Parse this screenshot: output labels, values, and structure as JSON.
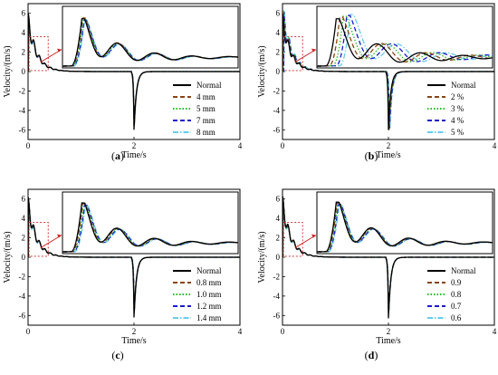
{
  "chart_data": [
    {
      "type": "line",
      "panel_label": "a",
      "xlabel": "Time/s",
      "ylabel": "Velocity/(m/s)",
      "xlim": [
        0,
        4
      ],
      "ylim": [
        -7,
        7
      ],
      "xticks": [
        "0",
        "2",
        "4"
      ],
      "yticks": [
        "-6",
        "-4",
        "-2",
        "0",
        "2",
        "4",
        "6"
      ],
      "legend": "right",
      "inset": true,
      "series": [
        {
          "name": "Normal",
          "color": "#000000",
          "dash": "solid",
          "peak": 6.0,
          "lag": 0.0
        },
        {
          "name": "4 mm",
          "color": "#8B4513",
          "dash": "dashed",
          "peak": 6.1,
          "lag": 0.004
        },
        {
          "name": "5 mm",
          "color": "#22bb22",
          "dash": "dotted",
          "peak": 5.9,
          "lag": 0.008
        },
        {
          "name": "7 mm",
          "color": "#1a1acc",
          "dash": "dashed",
          "peak": 5.8,
          "lag": 0.012
        },
        {
          "name": "8 mm",
          "color": "#66ccee",
          "dash": "dashdot",
          "peak": 5.7,
          "lag": 0.016
        }
      ]
    },
    {
      "type": "line",
      "panel_label": "b",
      "xlabel": "Time/s",
      "ylabel": "Velocity/(m/s)",
      "xlim": [
        0,
        4
      ],
      "ylim": [
        -7,
        7
      ],
      "xticks": [
        "0",
        "2",
        "4"
      ],
      "yticks": [
        "-6",
        "-4",
        "-2",
        "0",
        "2",
        "4",
        "6"
      ],
      "legend": "right",
      "inset": true,
      "series": [
        {
          "name": "Normal",
          "color": "#000000",
          "dash": "solid",
          "peak": 6.0,
          "lag": 0.0
        },
        {
          "name": "2 %",
          "color": "#8B4513",
          "dash": "dashed",
          "peak": 6.2,
          "lag": 0.02
        },
        {
          "name": "3 %",
          "color": "#22bb22",
          "dash": "dotted",
          "peak": 6.3,
          "lag": 0.04
        },
        {
          "name": "4 %",
          "color": "#1a1acc",
          "dash": "dashed",
          "peak": 6.4,
          "lag": 0.06
        },
        {
          "name": "5 %",
          "color": "#66ccee",
          "dash": "dashdot",
          "peak": 6.5,
          "lag": 0.08
        }
      ]
    },
    {
      "type": "line",
      "panel_label": "c",
      "xlabel": "Time/s",
      "ylabel": "Velocity/(m/s)",
      "xlim": [
        0,
        4
      ],
      "ylim": [
        -7,
        7
      ],
      "xticks": [
        "0",
        "2",
        "4"
      ],
      "yticks": [
        "-6",
        "-4",
        "-2",
        "0",
        "2",
        "4",
        "6"
      ],
      "legend": "right",
      "inset": true,
      "series": [
        {
          "name": "Normal",
          "color": "#000000",
          "dash": "solid",
          "peak": 6.2,
          "lag": 0.0
        },
        {
          "name": "0.8 mm",
          "color": "#8B4513",
          "dash": "dashed",
          "peak": 6.1,
          "lag": 0.005
        },
        {
          "name": "1.0 mm",
          "color": "#22bb22",
          "dash": "dotted",
          "peak": 6.0,
          "lag": 0.01
        },
        {
          "name": "1.2 mm",
          "color": "#1a1acc",
          "dash": "dashed",
          "peak": 5.9,
          "lag": 0.015
        },
        {
          "name": "1.4 mm",
          "color": "#66ccee",
          "dash": "dashdot",
          "peak": 5.8,
          "lag": 0.02
        }
      ]
    },
    {
      "type": "line",
      "panel_label": "d",
      "xlabel": "Time/s",
      "ylabel": "Velocity/(m/s)",
      "xlim": [
        0,
        4
      ],
      "ylim": [
        -7,
        7
      ],
      "xticks": [
        "0",
        "2",
        "4"
      ],
      "yticks": [
        "-6",
        "-4",
        "-2",
        "0",
        "2",
        "4",
        "6"
      ],
      "legend": "right",
      "inset": true,
      "series": [
        {
          "name": "Normal",
          "color": "#000000",
          "dash": "solid",
          "peak": 6.3,
          "lag": 0.0
        },
        {
          "name": "0.9",
          "color": "#8B4513",
          "dash": "dashed",
          "peak": 6.2,
          "lag": 0.004
        },
        {
          "name": "0.8",
          "color": "#22bb22",
          "dash": "dotted",
          "peak": 6.1,
          "lag": 0.008
        },
        {
          "name": "0.7",
          "color": "#1a1acc",
          "dash": "dashed",
          "peak": 6.0,
          "lag": 0.012
        },
        {
          "name": "0.6",
          "color": "#66ccee",
          "dash": "dashdot",
          "peak": 5.9,
          "lag": 0.016
        }
      ]
    }
  ]
}
